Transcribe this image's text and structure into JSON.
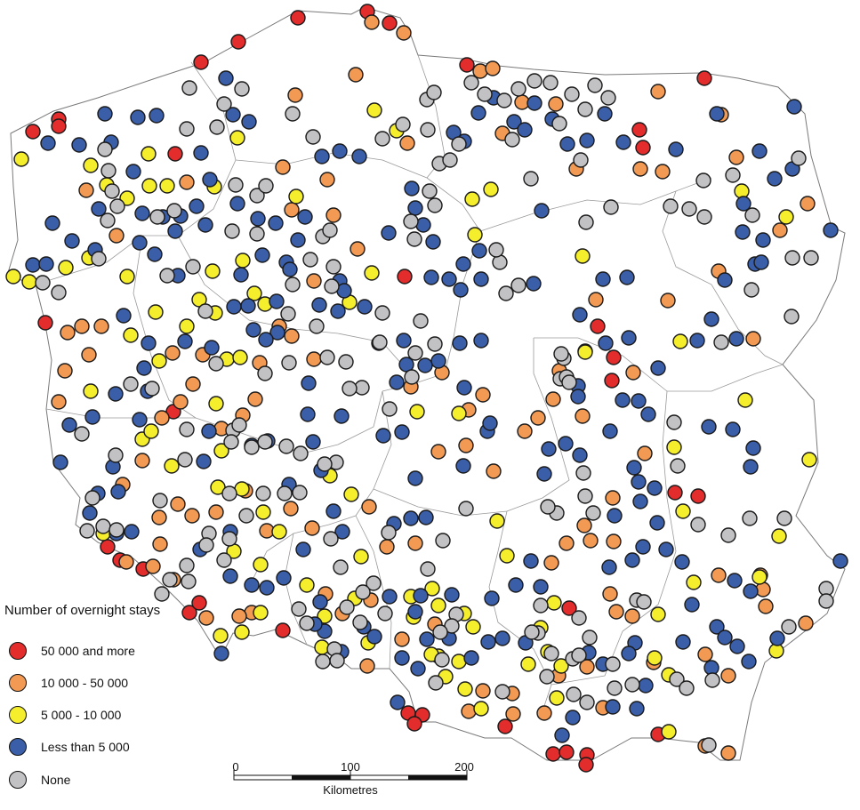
{
  "legend": {
    "title": "Number of overnight stays",
    "items": [
      {
        "label": "50 000 and more",
        "color": "#e32c2c"
      },
      {
        "label": "10 000 - 50 000",
        "color": "#f29a53"
      },
      {
        "label": "5 000 - 10 000",
        "color": "#f4ee2c"
      },
      {
        "label": "Less than 5 000",
        "color": "#3a5ea8"
      },
      {
        "label": "None",
        "color": "#c2c2c4"
      }
    ]
  },
  "scale_bar": {
    "ticks": [
      "0",
      "100",
      "200"
    ],
    "unit": "Kilometres"
  },
  "map": {
    "category_order": [
      "50 000 and more",
      "10 000 - 50 000",
      "5 000 - 10 000",
      "Less than 5 000",
      "None"
    ]
  }
}
